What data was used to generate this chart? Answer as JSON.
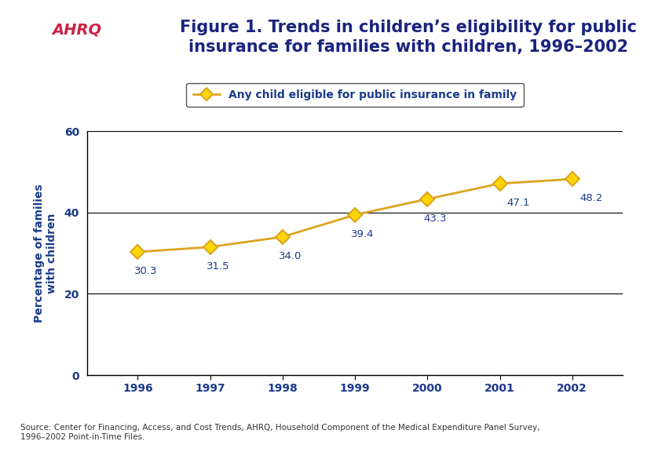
{
  "years": [
    1996,
    1997,
    1998,
    1999,
    2000,
    2001,
    2002
  ],
  "values": [
    30.3,
    31.5,
    34.0,
    39.4,
    43.3,
    47.1,
    48.2
  ],
  "line_color": "#DAA520",
  "marker_face": "#FFD700",
  "ylabel": "Percentage of families\nwith children",
  "ylim": [
    0,
    60
  ],
  "yticks": [
    0,
    20,
    40,
    60
  ],
  "legend_label": "Any child eligible for public insurance in family",
  "source_text": "Source: Center for Financing, Access, and Cost Trends, AHRQ, Household Component of the Medical Expenditure Panel Survey,\n1996–2002 Point-in-Time Files.",
  "title_line1": "Figure 1. Trends in children’s eligibility for public",
  "title_line2": "insurance for families with children, 1996–2002",
  "title_color": "#1a237e",
  "bg_color": "#ffffff",
  "border_color": "#1a237e",
  "header_bar_color": "#1a237e",
  "data_label_color": "#1a3a8a",
  "axis_label_color": "#1a3a8a",
  "tick_label_color": "#1a3a8a",
  "grid_color": "#000000",
  "font_size_title": 15,
  "font_size_axis_label": 10,
  "font_size_tick": 10,
  "font_size_data_label": 9.5,
  "font_size_legend": 10,
  "font_size_source": 7.5,
  "label_offsets": {
    "1996": [
      -0.05,
      -3.5,
      "left"
    ],
    "1997": [
      -0.05,
      -3.5,
      "left"
    ],
    "1998": [
      -0.05,
      -3.5,
      "left"
    ],
    "1999": [
      -0.05,
      -3.5,
      "left"
    ],
    "2000": [
      -0.05,
      -3.5,
      "left"
    ],
    "2001": [
      0.1,
      -3.5,
      "left"
    ],
    "2002": [
      0.1,
      -3.5,
      "left"
    ]
  }
}
